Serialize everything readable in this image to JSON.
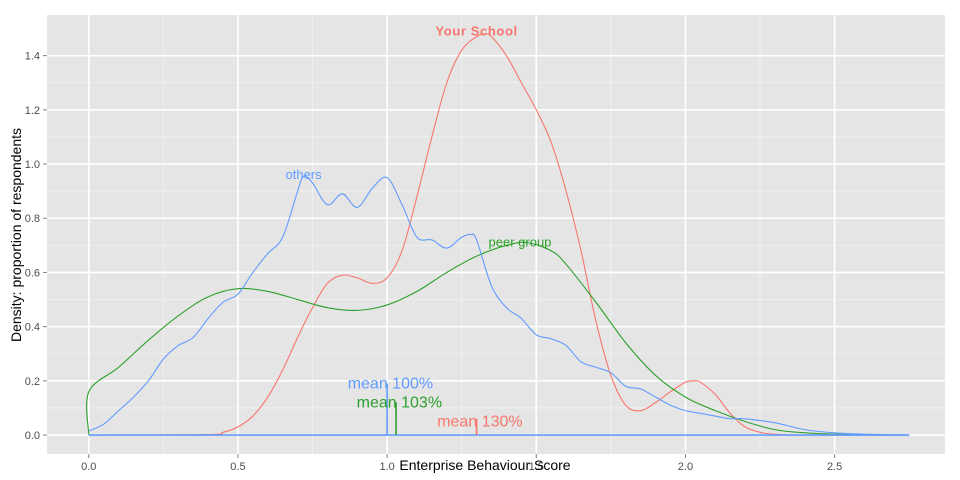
{
  "chart_data": {
    "type": "line",
    "title": "",
    "xlabel": "Enterprise Behaviour Score",
    "ylabel": "Density: proportion of respondents",
    "xlim": [
      -0.14,
      2.87
    ],
    "ylim": [
      -0.07,
      1.55
    ],
    "x_ticks": [
      0,
      0.5,
      1,
      1.5,
      2,
      2.5
    ],
    "x_tick_labels": [
      "0.0",
      "0.5",
      "1.0",
      "1.5",
      "2.0",
      "2.5"
    ],
    "y_ticks": [
      0,
      0.2,
      0.4,
      0.6,
      0.8,
      1.0,
      1.2,
      1.4
    ],
    "y_tick_labels": [
      "0.0",
      "0.2",
      "0.4",
      "0.6",
      "0.8",
      "1.0",
      "1.2",
      "1.4"
    ],
    "grid": true,
    "background": "#e5e5e5",
    "series": [
      {
        "name": "others",
        "color": "#619cff",
        "x": [
          0,
          0.05,
          0.1,
          0.15,
          0.2,
          0.25,
          0.3,
          0.35,
          0.4,
          0.45,
          0.5,
          0.55,
          0.6,
          0.65,
          0.7,
          0.72,
          0.75,
          0.8,
          0.85,
          0.9,
          0.95,
          1.0,
          1.05,
          1.1,
          1.15,
          1.2,
          1.25,
          1.28,
          1.3,
          1.35,
          1.4,
          1.45,
          1.5,
          1.55,
          1.6,
          1.65,
          1.7,
          1.75,
          1.8,
          1.85,
          1.9,
          1.95,
          2.0,
          2.05,
          2.1,
          2.15,
          2.2,
          2.3,
          2.4,
          2.5,
          2.6,
          2.7,
          2.75
        ],
        "y": [
          0.015,
          0.04,
          0.09,
          0.14,
          0.2,
          0.28,
          0.33,
          0.36,
          0.43,
          0.49,
          0.52,
          0.6,
          0.67,
          0.73,
          0.9,
          0.955,
          0.93,
          0.85,
          0.89,
          0.84,
          0.91,
          0.95,
          0.85,
          0.73,
          0.72,
          0.69,
          0.73,
          0.74,
          0.72,
          0.55,
          0.47,
          0.43,
          0.37,
          0.355,
          0.33,
          0.27,
          0.25,
          0.23,
          0.18,
          0.17,
          0.14,
          0.11,
          0.09,
          0.08,
          0.07,
          0.06,
          0.06,
          0.045,
          0.02,
          0.008,
          0.003,
          0.001,
          0
        ],
        "annotation": "others",
        "mean_label": "mean 100%",
        "mean_x": 1.0,
        "mean_height": 0.19
      },
      {
        "name": "peer group",
        "color": "#2ca02c",
        "x": [
          0,
          0.0001,
          0.1,
          0.2,
          0.3,
          0.4,
          0.5,
          0.6,
          0.7,
          0.8,
          0.9,
          1.0,
          1.1,
          1.2,
          1.3,
          1.4,
          1.47,
          1.55,
          1.6,
          1.7,
          1.8,
          1.9,
          2.0,
          2.1,
          2.2,
          2.3,
          2.4,
          2.5,
          2.6,
          2.7,
          2.75
        ],
        "y": [
          0,
          0.16,
          0.25,
          0.35,
          0.44,
          0.51,
          0.54,
          0.53,
          0.5,
          0.47,
          0.46,
          0.48,
          0.53,
          0.6,
          0.66,
          0.7,
          0.71,
          0.68,
          0.63,
          0.49,
          0.34,
          0.22,
          0.14,
          0.09,
          0.05,
          0.02,
          0.008,
          0.003,
          0.001,
          0,
          0
        ],
        "annotation": "peer group",
        "mean_label": "mean 103%",
        "mean_x": 1.03,
        "mean_height": 0.12
      },
      {
        "name": "Your School",
        "color": "#f8766d",
        "x": [
          0,
          0.4,
          0.45,
          0.5,
          0.55,
          0.6,
          0.65,
          0.7,
          0.75,
          0.8,
          0.85,
          0.9,
          0.95,
          1.0,
          1.05,
          1.1,
          1.15,
          1.2,
          1.25,
          1.3,
          1.33,
          1.35,
          1.4,
          1.45,
          1.5,
          1.55,
          1.6,
          1.65,
          1.7,
          1.75,
          1.8,
          1.85,
          1.9,
          1.95,
          2.0,
          2.03,
          2.05,
          2.1,
          2.15,
          2.2,
          2.25,
          2.3,
          2.4,
          2.75
        ],
        "y": [
          0,
          0.002,
          0.01,
          0.03,
          0.07,
          0.14,
          0.24,
          0.36,
          0.47,
          0.56,
          0.59,
          0.58,
          0.56,
          0.58,
          0.68,
          0.88,
          1.1,
          1.3,
          1.42,
          1.47,
          1.48,
          1.47,
          1.4,
          1.3,
          1.2,
          1.08,
          0.9,
          0.68,
          0.42,
          0.22,
          0.11,
          0.09,
          0.12,
          0.16,
          0.195,
          0.2,
          0.195,
          0.15,
          0.08,
          0.03,
          0.01,
          0.003,
          0,
          0
        ],
        "annotation": "Your School",
        "mean_label": "mean 130%",
        "mean_x": 1.3,
        "mean_height": 0.06
      }
    ]
  }
}
